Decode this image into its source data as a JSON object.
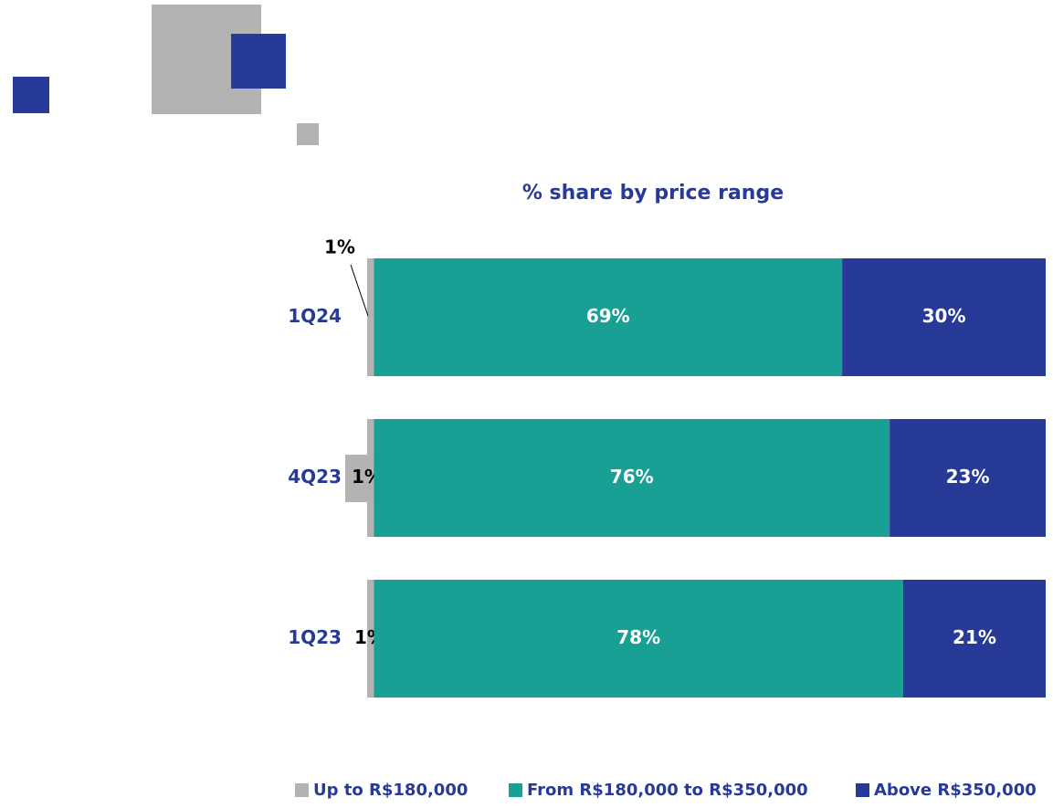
{
  "chart_data": {
    "type": "stacked-bar-horizontal",
    "title": "% share by price range",
    "categories": [
      "1Q24",
      "4Q23",
      "1Q23"
    ],
    "xlim": [
      0,
      100
    ],
    "series": [
      {
        "name": "Up to R$180,000",
        "color": "#b3b3b3",
        "values": [
          1,
          1,
          1
        ],
        "value_labels": [
          "1%",
          "1%",
          "1%"
        ]
      },
      {
        "name": "From R$180,000 to R$350,000",
        "color": "#17a093",
        "values": [
          69,
          76,
          78
        ],
        "value_labels": [
          "69%",
          "76%",
          "78%"
        ]
      },
      {
        "name": "Above R$350,000",
        "color": "#283a97",
        "values": [
          30,
          23,
          21
        ],
        "value_labels": [
          "30%",
          "23%",
          "21%"
        ]
      }
    ]
  }
}
